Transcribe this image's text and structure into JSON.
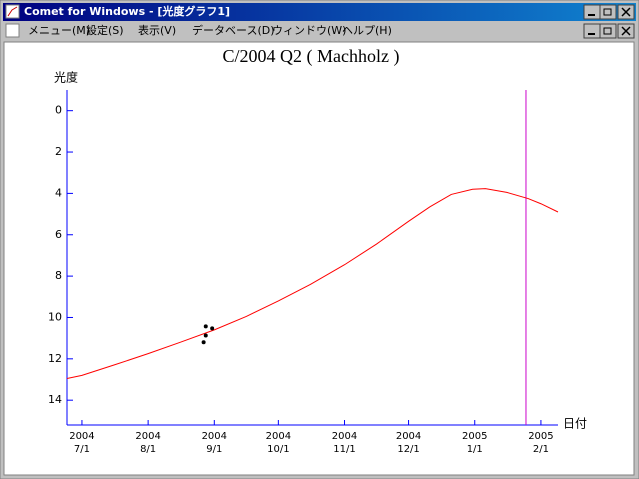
{
  "window": {
    "title": "Comet for Windows - [光度グラフ1]"
  },
  "menu": {
    "items": [
      "メニュー(M)",
      "設定(S)",
      "表示(V)",
      "データベース(D)",
      "ウィンドウ(W)",
      "ヘルプ(H)"
    ]
  },
  "chart_data": {
    "type": "line",
    "title": "C/2004 Q2 ( Machholz )",
    "y_label": "光度",
    "x_label": "日付",
    "ylim": [
      -1,
      15.2
    ],
    "y_inverted": true,
    "yticks": [
      0,
      2,
      4,
      6,
      8,
      10,
      12,
      14
    ],
    "xlim": [
      "2004-06-24",
      "2005-02-09"
    ],
    "xticks": [
      {
        "value": "2004-07-01",
        "label": "7/1"
      },
      {
        "value": "2004-08-01",
        "label": "8/1"
      },
      {
        "value": "2004-09-01",
        "label": "9/1"
      },
      {
        "value": "2004-10-01",
        "label": "10/1"
      },
      {
        "value": "2004-11-01",
        "label": "11/1"
      },
      {
        "value": "2004-12-01",
        "label": "12/1"
      },
      {
        "value": "2005-01-01",
        "label": "1/1"
      },
      {
        "value": "2005-02-01",
        "label": "2/1"
      }
    ],
    "xtick_years": [
      "2004",
      "2004",
      "2004",
      "2004",
      "2004",
      "2004",
      "2005",
      "2005"
    ],
    "axis_color": "#0000ff",
    "marker_date": "2005-01-25",
    "marker_color": "#cc00cc",
    "series": [
      {
        "type": "line",
        "color": "#ff0000",
        "x": [
          "2004-06-24",
          "2004-07-01",
          "2004-07-16",
          "2004-08-01",
          "2004-08-16",
          "2004-09-01",
          "2004-09-16",
          "2004-10-01",
          "2004-10-16",
          "2004-11-01",
          "2004-11-16",
          "2004-12-01",
          "2004-12-11",
          "2004-12-21",
          "2004-12-31",
          "2005-01-06",
          "2005-01-16",
          "2005-01-26",
          "2005-02-01",
          "2005-02-09"
        ],
        "values": [
          12.95,
          12.8,
          12.3,
          11.75,
          11.2,
          10.6,
          9.95,
          9.2,
          8.4,
          7.45,
          6.45,
          5.35,
          4.65,
          4.05,
          3.8,
          3.77,
          3.95,
          4.25,
          4.5,
          4.9
        ]
      },
      {
        "type": "scatter",
        "color": "#000000",
        "x": [
          "2004-08-28",
          "2004-08-31",
          "2004-08-28",
          "2004-08-27"
        ],
        "values": [
          10.43,
          10.53,
          10.87,
          11.2
        ]
      }
    ]
  }
}
